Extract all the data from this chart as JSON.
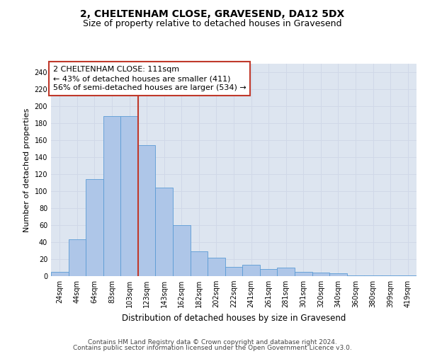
{
  "title": "2, CHELTENHAM CLOSE, GRAVESEND, DA12 5DX",
  "subtitle": "Size of property relative to detached houses in Gravesend",
  "xlabel": "Distribution of detached houses by size in Gravesend",
  "ylabel": "Number of detached properties",
  "categories": [
    "24sqm",
    "44sqm",
    "64sqm",
    "83sqm",
    "103sqm",
    "123sqm",
    "143sqm",
    "162sqm",
    "182sqm",
    "202sqm",
    "222sqm",
    "241sqm",
    "261sqm",
    "281sqm",
    "301sqm",
    "320sqm",
    "340sqm",
    "360sqm",
    "380sqm",
    "399sqm",
    "419sqm"
  ],
  "values": [
    5,
    43,
    114,
    188,
    188,
    154,
    104,
    60,
    29,
    22,
    11,
    13,
    8,
    10,
    5,
    4,
    3,
    1,
    1,
    1,
    1
  ],
  "bar_color": "#aec6e8",
  "bar_edge_color": "#5b9bd5",
  "highlight_index": 4,
  "highlight_color": "#c0392b",
  "annotation_line1": "2 CHELTENHAM CLOSE: 111sqm",
  "annotation_line2": "← 43% of detached houses are smaller (411)",
  "annotation_line3": "56% of semi-detached houses are larger (534) →",
  "ylim": [
    0,
    250
  ],
  "yticks": [
    0,
    20,
    40,
    60,
    80,
    100,
    120,
    140,
    160,
    180,
    200,
    220,
    240
  ],
  "grid_color": "#d0d8e8",
  "background_color": "#dde5f0",
  "footer_line1": "Contains HM Land Registry data © Crown copyright and database right 2024.",
  "footer_line2": "Contains public sector information licensed under the Open Government Licence v3.0.",
  "title_fontsize": 10,
  "subtitle_fontsize": 9,
  "xlabel_fontsize": 8.5,
  "ylabel_fontsize": 8,
  "tick_fontsize": 7,
  "annotation_fontsize": 8,
  "footer_fontsize": 6.5
}
